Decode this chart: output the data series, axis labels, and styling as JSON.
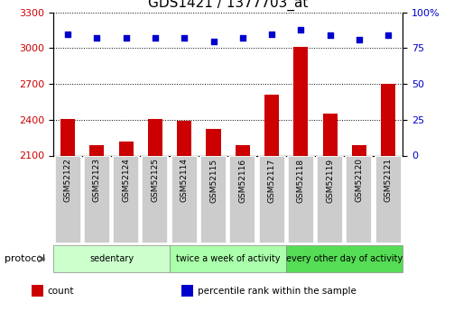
{
  "title": "GDS1421 / 1377703_at",
  "samples": [
    "GSM52122",
    "GSM52123",
    "GSM52124",
    "GSM52125",
    "GSM52114",
    "GSM52115",
    "GSM52116",
    "GSM52117",
    "GSM52118",
    "GSM52119",
    "GSM52120",
    "GSM52121"
  ],
  "counts": [
    2410,
    2185,
    2220,
    2410,
    2390,
    2320,
    2190,
    2610,
    3010,
    2450,
    2190,
    2700
  ],
  "percentile_ranks": [
    85,
    82,
    82,
    82,
    82,
    80,
    82,
    85,
    88,
    84,
    81,
    84
  ],
  "ylim_left": [
    2100,
    3300
  ],
  "ylim_right": [
    0,
    100
  ],
  "yticks_left": [
    2100,
    2400,
    2700,
    3000,
    3300
  ],
  "yticks_right": [
    0,
    25,
    50,
    75,
    100
  ],
  "bar_color": "#cc0000",
  "dot_color": "#0000cc",
  "groups": [
    {
      "label": "sedentary",
      "start": 0,
      "end": 4,
      "color": "#ccffcc"
    },
    {
      "label": "twice a week of activity",
      "start": 4,
      "end": 8,
      "color": "#aaffaa"
    },
    {
      "label": "every other day of activity",
      "start": 8,
      "end": 12,
      "color": "#55dd55"
    }
  ],
  "protocol_label": "protocol",
  "legend_items": [
    {
      "label": "count",
      "color": "#cc0000"
    },
    {
      "label": "percentile rank within the sample",
      "color": "#0000cc"
    }
  ],
  "sample_box_color": "#cccccc",
  "sample_box_edge": "#ffffff",
  "grid_color": "#000000",
  "background_color": "#ffffff",
  "title_fontsize": 11,
  "tick_fontsize": 8,
  "label_fontsize": 8
}
